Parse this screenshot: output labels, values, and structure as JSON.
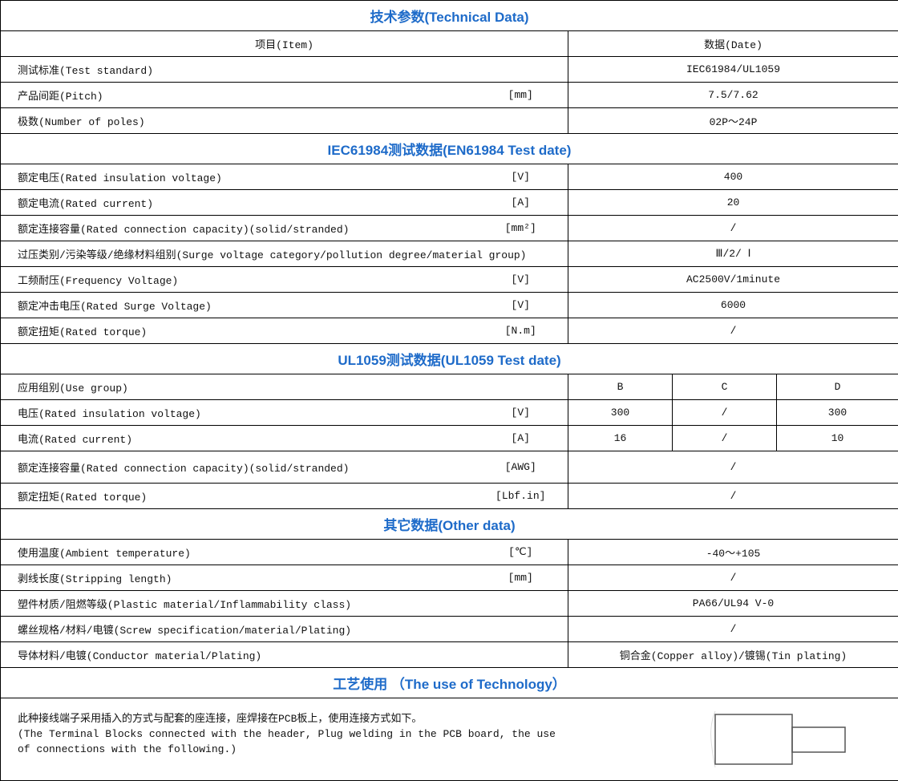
{
  "title": "技术参数(Technical Data)",
  "header": {
    "item": "项目(Item)",
    "data": "数据(Date)"
  },
  "general": [
    {
      "label": "测试标准(Test standard)",
      "unit": "",
      "value": "IEC61984/UL1059"
    },
    {
      "label": "产品间距(Pitch)",
      "unit": "[mm]",
      "value": "7.5/7.62"
    },
    {
      "label": "极数(Number of poles)",
      "unit": "",
      "value": "02P～24P"
    }
  ],
  "iec_title": "IEC61984测试数据(EN61984 Test date)",
  "iec": [
    {
      "label": "额定电压(Rated insulation voltage)",
      "unit": "[V]",
      "value": "400"
    },
    {
      "label": "额定电流(Rated current)",
      "unit": "[A]",
      "value": "20"
    },
    {
      "label": "额定连接容量(Rated connection capacity)(solid/stranded)",
      "unit": "[mm²]",
      "value": "/"
    },
    {
      "label": "过压类别/污染等级/绝缘材料组别(Surge voltage category/pollution degree/material group)",
      "unit": "",
      "value": "Ⅲ/2/ Ⅰ"
    },
    {
      "label": "工频耐压(Frequency Voltage)",
      "unit": "[V]",
      "value": "AC2500V/1minute"
    },
    {
      "label": "额定冲击电压(Rated Surge Voltage)",
      "unit": "[V]",
      "value": "6000"
    },
    {
      "label": "额定扭矩(Rated torque)",
      "unit": "[N.m]",
      "value": "/"
    }
  ],
  "ul_title": "UL1059测试数据(UL1059 Test date)",
  "ul": [
    {
      "label": "应用组别(Use group)",
      "unit": "",
      "values": [
        "B",
        "C",
        "D"
      ]
    },
    {
      "label": "电压(Rated insulation voltage)",
      "unit": "[V]",
      "values": [
        "300",
        "/",
        "300"
      ]
    },
    {
      "label": "电流(Rated current)",
      "unit": "[A]",
      "values": [
        "16",
        "/",
        "10"
      ]
    },
    {
      "label": "额定连接容量(Rated connection capacity)(solid/stranded)",
      "unit": "[AWG]",
      "value": "/"
    },
    {
      "label": "额定扭矩(Rated torque)",
      "unit": "[Lbf.in]",
      "value": "/"
    }
  ],
  "other_title": "其它数据(Other data)",
  "other": [
    {
      "label": "使用温度(Ambient temperature)",
      "unit": "[℃]",
      "value": "-40～+105"
    },
    {
      "label": "剥线长度(Stripping length)",
      "unit": "[mm]",
      "value": "/"
    },
    {
      "label": "塑件材质/阻燃等级(Plastic material/Inflammability class)",
      "unit": "",
      "value": "PA66/UL94 V-0"
    },
    {
      "label": "螺丝规格/材料/电镀(Screw specification/material/Plating)",
      "unit": "",
      "value": "/"
    },
    {
      "label": "导体材料/电镀(Conductor material/Plating)",
      "unit": "",
      "value": "铜合金(Copper alloy)/镀锡(Tin plating)"
    }
  ],
  "tech_title": "工艺使用 （The use of Technology）",
  "tech_text": [
    "此种接线端子采用插入的方式与配套的座连接，座焊接在PCB板上，使用连接方式如下。",
    "(The Terminal Blocks connected with the header, Plug welding in the PCB board, the use",
    "of connections with the following.)"
  ],
  "accent_color": "#1e6bc9"
}
